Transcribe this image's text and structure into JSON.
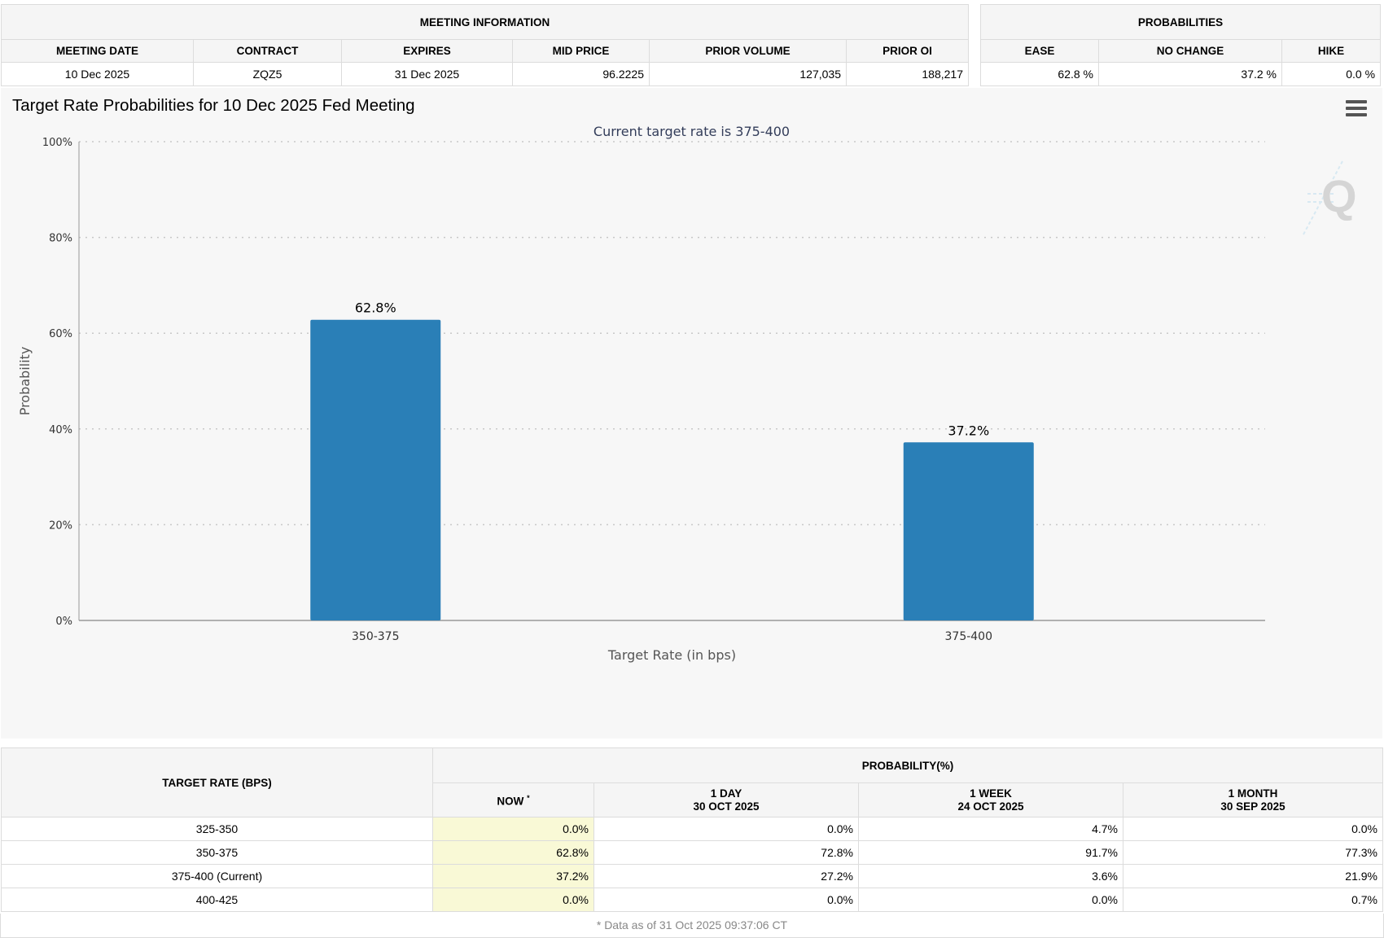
{
  "meeting_info": {
    "header": "MEETING INFORMATION",
    "columns": [
      "MEETING DATE",
      "CONTRACT",
      "EXPIRES",
      "MID PRICE",
      "PRIOR VOLUME",
      "PRIOR OI"
    ],
    "values": [
      "10 Dec 2025",
      "ZQZ5",
      "31 Dec 2025",
      "96.2225",
      "127,035",
      "188,217"
    ]
  },
  "probabilities": {
    "header": "PROBABILITIES",
    "columns": [
      "EASE",
      "NO CHANGE",
      "HIKE"
    ],
    "values": [
      "62.8 %",
      "37.2 %",
      "0.0 %"
    ]
  },
  "chart_data": {
    "type": "bar",
    "title": "Target Rate Probabilities for 10 Dec 2025 Fed Meeting",
    "subtitle": "Current target rate is 375-400",
    "xlabel": "Target Rate (in bps)",
    "ylabel": "Probability",
    "categories": [
      "350-375",
      "375-400"
    ],
    "values": [
      62.8,
      37.2
    ],
    "data_labels": [
      "62.8%",
      "37.2%"
    ],
    "ylim": [
      0,
      100
    ],
    "yticks": [
      0,
      20,
      40,
      60,
      80,
      100
    ],
    "ytick_labels": [
      "0%",
      "20%",
      "40%",
      "60%",
      "80%",
      "100%"
    ],
    "grid": true,
    "bar_color": "#2a7fb7",
    "legend": "none"
  },
  "rates_table": {
    "target_header": "TARGET RATE (BPS)",
    "prob_header": "PROBABILITY(%)",
    "col_now": "NOW",
    "col_now_mark": "*",
    "cols": [
      {
        "line1": "1 DAY",
        "line2": "30 OCT 2025"
      },
      {
        "line1": "1 WEEK",
        "line2": "24 OCT 2025"
      },
      {
        "line1": "1 MONTH",
        "line2": "30 SEP 2025"
      }
    ],
    "rows": [
      {
        "rate": "325-350",
        "now": "0.0%",
        "d1": "0.0%",
        "w1": "4.7%",
        "m1": "0.0%"
      },
      {
        "rate": "350-375",
        "now": "62.8%",
        "d1": "72.8%",
        "w1": "91.7%",
        "m1": "77.3%"
      },
      {
        "rate": "375-400 (Current)",
        "now": "37.2%",
        "d1": "27.2%",
        "w1": "3.6%",
        "m1": "21.9%"
      },
      {
        "rate": "400-425",
        "now": "0.0%",
        "d1": "0.0%",
        "w1": "0.0%",
        "m1": "0.7%"
      }
    ],
    "footnote": "* Data as of 31 Oct 2025 09:37:06 CT"
  }
}
